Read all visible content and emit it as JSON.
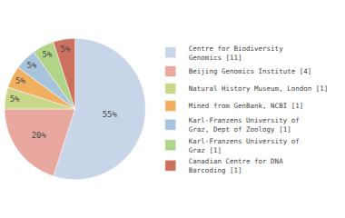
{
  "chart_data": {
    "type": "pie",
    "categories": [
      "Centre for Biodiversity\nGenomics [11]",
      "Beijing Genomics Institute [4]",
      "Natural History Museum, London [1]",
      "Mined from GenBank, NCBI [1]",
      "Karl-Franzens University of\nGraz, Dept of Zoology [1]",
      "Karl-Franzens University of\nGraz [1]",
      "Canadian Centre for DNA\nBarcoding [1]"
    ],
    "values": [
      55,
      20,
      5,
      5,
      5,
      5,
      5
    ],
    "value_labels": [
      "55%",
      "20%",
      "5%",
      "5%",
      "5%",
      "5%",
      "5%"
    ],
    "colors": [
      "#c8d4e8",
      "#e8a8a0",
      "#c8d888",
      "#f0b060",
      "#a8c4dc",
      "#b0d488",
      "#cc7060"
    ],
    "data_labels": true,
    "legend": "right"
  }
}
